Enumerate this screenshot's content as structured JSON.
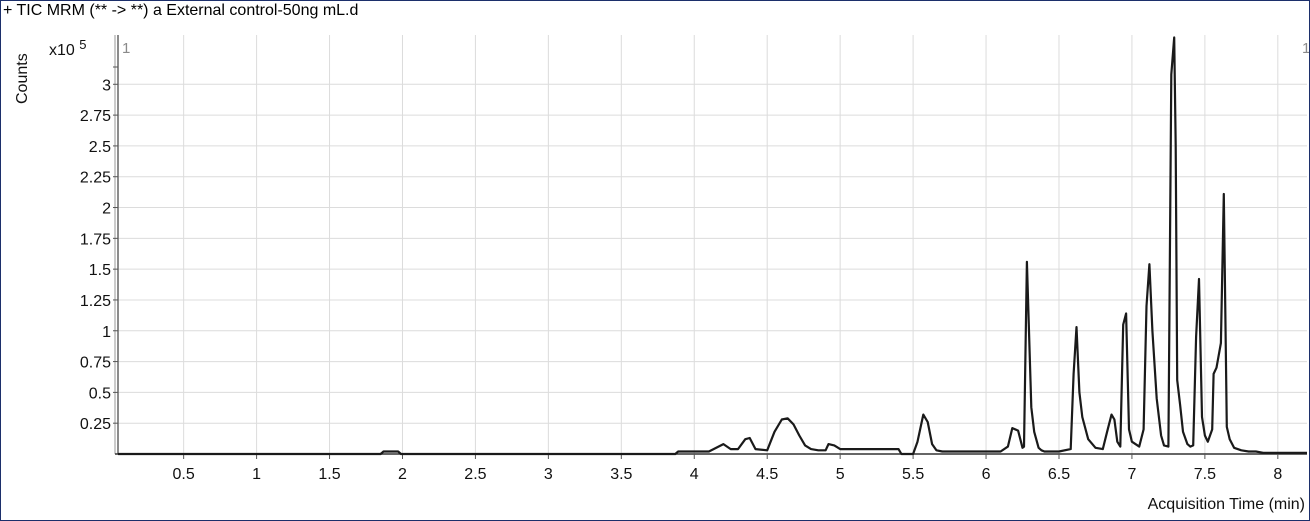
{
  "title": "+ TIC MRM (** -> **) a External control-50ng mL.d",
  "colors": {
    "frame": "#1c2f6b",
    "trace": "#1a1a1a",
    "grid": "#dcdcdc"
  },
  "chart_data": {
    "type": "line",
    "title": "+ TIC MRM (** -> **) a External control-50ng mL.d",
    "xlabel": "Acquisition Time (min)",
    "ylabel": "Counts",
    "y_multiplier": "x10 5",
    "corner_marker_left": "1",
    "corner_marker_right": "1",
    "xlim": [
      0.05,
      8.2
    ],
    "ylim": [
      0,
      3.4
    ],
    "grid": true,
    "x_ticks": [
      0.5,
      1,
      1.5,
      2,
      2.5,
      3,
      3.5,
      4,
      4.5,
      5,
      5.5,
      6,
      6.5,
      7,
      7.5,
      8
    ],
    "x_tick_labels": [
      "0.5",
      "1",
      "1.5",
      "2",
      "2.5",
      "3",
      "3.5",
      "4",
      "4.5",
      "5",
      "5.5",
      "6",
      "6.5",
      "7",
      "7.5",
      "8"
    ],
    "y_ticks": [
      0.25,
      0.5,
      0.75,
      1,
      1.25,
      1.5,
      1.75,
      2,
      2.25,
      2.5,
      2.75,
      3
    ],
    "y_tick_labels": [
      "0.25",
      "0.5",
      "0.75",
      "1",
      "1.25",
      "1.5",
      "1.75",
      "2",
      "2.25",
      "2.5",
      "2.75",
      "3"
    ],
    "series": [
      {
        "x": [
          0.05,
          1.85,
          1.87,
          1.97,
          1.99,
          3.87,
          3.89,
          4.1,
          4.2,
          4.25,
          4.3,
          4.35,
          4.38,
          4.42,
          4.5,
          4.55,
          4.6,
          4.64,
          4.68,
          4.72,
          4.76,
          4.8,
          4.85,
          4.9,
          4.92,
          4.96,
          5.0,
          5.02,
          5.1,
          5.3,
          5.4,
          5.42,
          5.5,
          5.53,
          5.57,
          5.6,
          5.63,
          5.66,
          5.7,
          5.75,
          5.8,
          6.1,
          6.15,
          6.18,
          6.22,
          6.25,
          6.26,
          6.28,
          6.31,
          6.33,
          6.36,
          6.38,
          6.4,
          6.45,
          6.5,
          6.58,
          6.6,
          6.62,
          6.64,
          6.66,
          6.7,
          6.75,
          6.8,
          6.83,
          6.86,
          6.88,
          6.9,
          6.92,
          6.94,
          6.96,
          6.98,
          7.0,
          7.05,
          7.08,
          7.1,
          7.12,
          7.14,
          7.17,
          7.2,
          7.22,
          7.25,
          7.27,
          7.29,
          7.3,
          7.31,
          7.33,
          7.35,
          7.38,
          7.4,
          7.42,
          7.44,
          7.46,
          7.48,
          7.5,
          7.52,
          7.55,
          7.56,
          7.58,
          7.61,
          7.63,
          7.65,
          7.67,
          7.7,
          7.75,
          7.8,
          7.85,
          7.9,
          7.95,
          8.0,
          8.2
        ],
        "y": [
          0,
          0,
          0.02,
          0.02,
          0,
          0,
          0.02,
          0.02,
          0.08,
          0.04,
          0.04,
          0.12,
          0.13,
          0.04,
          0.03,
          0.18,
          0.28,
          0.29,
          0.24,
          0.15,
          0.07,
          0.04,
          0.03,
          0.03,
          0.08,
          0.07,
          0.04,
          0.04,
          0.04,
          0.04,
          0.04,
          0.0,
          0.0,
          0.1,
          0.32,
          0.26,
          0.08,
          0.03,
          0.02,
          0.02,
          0.02,
          0.02,
          0.06,
          0.21,
          0.19,
          0.05,
          0.06,
          1.56,
          0.38,
          0.18,
          0.05,
          0.03,
          0.02,
          0.02,
          0.02,
          0.04,
          0.65,
          1.03,
          0.5,
          0.3,
          0.12,
          0.05,
          0.04,
          0.18,
          0.32,
          0.28,
          0.1,
          0.06,
          1.05,
          1.14,
          0.2,
          0.1,
          0.06,
          0.2,
          1.2,
          1.54,
          1.0,
          0.45,
          0.15,
          0.07,
          0.06,
          3.08,
          3.38,
          2.5,
          0.6,
          0.4,
          0.18,
          0.08,
          0.06,
          0.07,
          0.95,
          1.42,
          0.3,
          0.15,
          0.1,
          0.2,
          0.65,
          0.7,
          0.9,
          2.11,
          0.22,
          0.12,
          0.05,
          0.03,
          0.02,
          0.02,
          0.01,
          0.01,
          0.01,
          0.01
        ]
      }
    ]
  }
}
